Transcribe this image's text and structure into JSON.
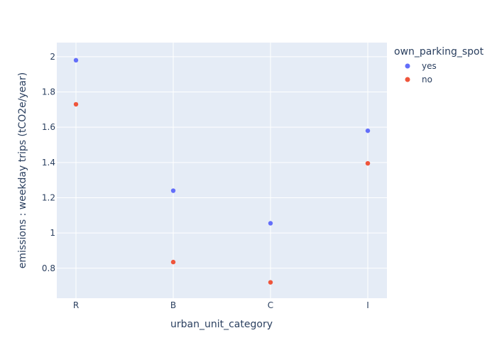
{
  "chart_data": {
    "type": "scatter",
    "title": "",
    "xlabel": "urban_unit_category",
    "ylabel": "emissions : weekday trips (tCO2e/year)",
    "categories": [
      "R",
      "B",
      "C",
      "I"
    ],
    "yticks": [
      "0.8",
      "1",
      "1.2",
      "1.4",
      "1.6",
      "1.8",
      "2"
    ],
    "ylim": [
      0.63,
      2.08
    ],
    "grid": true,
    "legend": {
      "title": "own_parking_spot",
      "position": "top-right"
    },
    "series": [
      {
        "name": "yes",
        "color": "#636efa",
        "values": [
          1.98,
          1.24,
          1.055,
          1.58
        ]
      },
      {
        "name": "no",
        "color": "#ef553b",
        "values": [
          1.73,
          0.835,
          0.72,
          1.395
        ]
      }
    ],
    "plot_background": "#e5ecf6",
    "grid_color": "#ffffff",
    "text_color": "#2a3f5f"
  }
}
